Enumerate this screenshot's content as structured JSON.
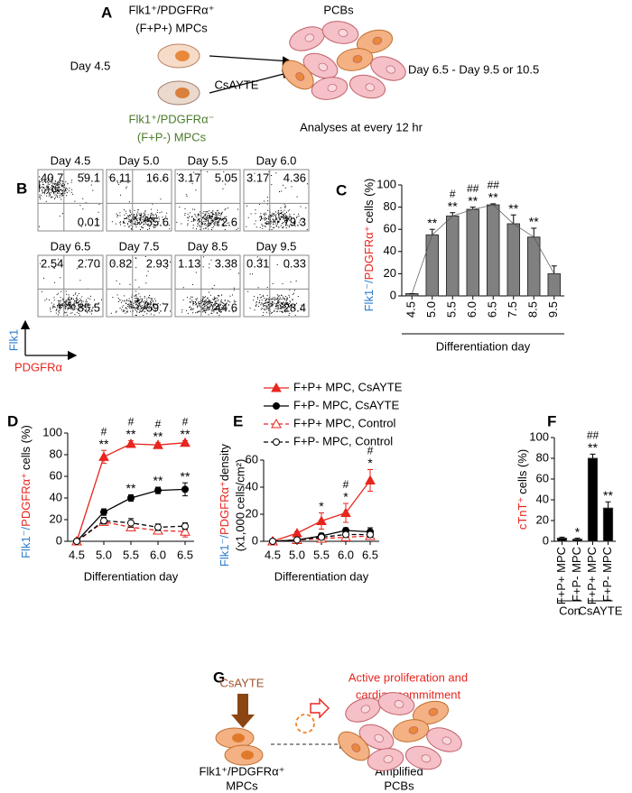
{
  "panels": {
    "a": {
      "label": "A",
      "mpc_pos": [
        "Flk1⁺/PDGFRα⁺",
        "(F+P+) MPCs"
      ],
      "day": "Day 4.5",
      "treatment": "CsAYTE",
      "mpc_neg": [
        "Flk1⁺/PDGFRα⁻",
        "(F+P-) MPCs"
      ],
      "product": "PCBs",
      "period": "Day 6.5 - Day 9.5 or 10.5",
      "analysis": "Analyses at every 12 hr"
    },
    "b": {
      "label": "B",
      "y_axis": "Flk1",
      "x_axis": "PDGFRα",
      "plots": [
        {
          "title": "Day 4.5",
          "upper_left": "40.7",
          "upper_right": "59.1",
          "lower_right": "0.01"
        },
        {
          "title": "Day 5.0",
          "upper_left": "6.11",
          "upper_right": "16.6",
          "lower_right": "55.6"
        },
        {
          "title": "Day 5.5",
          "upper_left": "3.17",
          "upper_right": "5.05",
          "lower_right": "72.6"
        },
        {
          "title": "Day 6.0",
          "upper_left": "3.17",
          "upper_right": "4.36",
          "lower_right": "79.3"
        },
        {
          "title": "Day 6.5",
          "upper_left": "2.54",
          "upper_right": "2.70",
          "lower_right": "85.5"
        },
        {
          "title": "Day 7.5",
          "upper_left": "0.82",
          "upper_right": "2.93",
          "lower_right": "59.7"
        },
        {
          "title": "Day 8.5",
          "upper_left": "1.13",
          "upper_right": "3.38",
          "lower_right": "44.6"
        },
        {
          "title": "Day 9.5",
          "upper_left": "0.31",
          "upper_right": "0.33",
          "lower_right": "28.4"
        }
      ]
    },
    "g": {
      "label": "G",
      "treatment": "CsAYTE",
      "effect": [
        "Active proliferation and",
        "cardiac commitment"
      ],
      "source": [
        "Flk1⁺/PDGFRα⁺",
        "MPCs"
      ],
      "product": [
        "Amplified",
        "PCBs"
      ]
    }
  },
  "chart_data": [
    {
      "type": "bar",
      "label": "C",
      "ylabel": [
        {
          "text": "Flk1⁻/",
          "color": "#2a7ccc"
        },
        {
          "text": "PDGFRα⁺",
          "color": "#e8251e"
        },
        {
          "text": "cells (%)",
          "color": "#000000"
        }
      ],
      "xlabel": "Differentiation day",
      "categories": [
        "4.5",
        "5.0",
        "5.5",
        "6.0",
        "6.5",
        "7.5",
        "8.5",
        "9.5"
      ],
      "values": [
        2,
        55,
        72,
        78,
        82,
        65,
        53,
        20
      ],
      "errors": [
        0,
        5,
        3,
        2,
        1,
        8,
        8,
        7
      ],
      "stars": [
        null,
        "**",
        "**",
        "**",
        "**",
        "**",
        "**",
        null
      ],
      "hashes": [
        null,
        null,
        "#",
        "##",
        "##",
        null,
        null,
        null
      ],
      "color": "#808080",
      "ylim": [
        0,
        100
      ],
      "yticks": [
        0,
        20,
        40,
        60,
        80,
        100
      ]
    },
    {
      "type": "line",
      "label": "D",
      "ylabel": [
        {
          "text": "Flk1⁻/",
          "color": "#2a7ccc"
        },
        {
          "text": "PDGFRα⁺",
          "color": "#e8251e"
        },
        {
          "text": "cells (%)",
          "color": "#000000"
        }
      ],
      "xlabel": "Differentiation day",
      "categories": [
        "4.5",
        "5.0",
        "5.5",
        "6.0",
        "6.5"
      ],
      "series": [
        {
          "name": "F+P+ MPC, CsAYTE",
          "color": "#e8251e",
          "dash": false,
          "marker": "triangle",
          "filled": true,
          "values": [
            0,
            78,
            90,
            89,
            91
          ],
          "errors": [
            0,
            6,
            3,
            2,
            2
          ],
          "stars": [
            null,
            "**",
            "**",
            "**",
            "**"
          ],
          "hashes": [
            null,
            "#",
            "#",
            "#",
            "#"
          ]
        },
        {
          "name": "F+P- MPC, CsAYTE",
          "color": "#000000",
          "dash": false,
          "marker": "circle",
          "filled": true,
          "values": [
            0,
            27,
            40,
            47,
            48
          ],
          "errors": [
            0,
            3,
            3,
            3,
            6
          ],
          "stars": [
            null,
            null,
            "**",
            "**",
            "**"
          ]
        },
        {
          "name": "F+P+ MPC, Control",
          "color": "#e8251e",
          "dash": true,
          "marker": "triangle",
          "filled": false,
          "values": [
            0,
            18,
            13,
            10,
            9
          ],
          "errors": [
            0,
            3,
            3,
            3,
            5
          ]
        },
        {
          "name": "F+P- MPC, Control",
          "color": "#000000",
          "dash": true,
          "marker": "circle",
          "filled": false,
          "values": [
            0,
            19,
            17,
            13,
            14
          ],
          "errors": [
            0,
            3,
            4,
            3,
            3
          ]
        }
      ],
      "ylim": [
        0,
        100
      ],
      "yticks": [
        0,
        20,
        40,
        60,
        80,
        100
      ]
    },
    {
      "type": "line",
      "label": "E",
      "ylabel": [
        {
          "text": "Flk1⁻/",
          "color": "#2a7ccc"
        },
        {
          "text": "PDGFRα⁺",
          "color": "#e8251e"
        },
        {
          "text": "density",
          "color": "#000000"
        }
      ],
      "ylabel2": "(x1,000 cells/cm²)",
      "xlabel": "Differentiation day",
      "categories": [
        "4.5",
        "5.0",
        "5.5",
        "6.0",
        "6.5"
      ],
      "series": [
        {
          "color": "#e8251e",
          "dash": false,
          "marker": "triangle",
          "filled": true,
          "values": [
            0,
            6,
            15,
            21,
            45
          ],
          "errors": [
            0,
            1,
            6,
            7,
            8
          ],
          "stars": [
            null,
            null,
            "*",
            "*",
            "*"
          ],
          "hashes": [
            null,
            null,
            null,
            "#",
            "#"
          ]
        },
        {
          "color": "#000000",
          "dash": false,
          "marker": "circle",
          "filled": true,
          "values": [
            0,
            1,
            4,
            8,
            7
          ],
          "errors": [
            0,
            1,
            2,
            2,
            3
          ]
        },
        {
          "color": "#e8251e",
          "dash": true,
          "marker": "triangle",
          "filled": false,
          "values": [
            0,
            1,
            2,
            3,
            4
          ],
          "errors": [
            0,
            1,
            1,
            1,
            2
          ]
        },
        {
          "color": "#000000",
          "dash": true,
          "marker": "circle",
          "filled": false,
          "values": [
            0,
            1,
            3,
            5,
            5
          ],
          "errors": [
            0,
            1,
            1,
            2,
            2
          ]
        }
      ],
      "ylim": [
        0,
        60
      ],
      "yticks": [
        0,
        20,
        40,
        60
      ]
    },
    {
      "type": "bar",
      "label": "F",
      "ylabel": [
        {
          "text": "cTnT⁺",
          "color": "#e8251e"
        },
        {
          "text": "cells (%)",
          "color": "#000000"
        }
      ],
      "categories": [
        "F+P+ MPC",
        "F+P- MPC",
        "F+P+ MPC",
        "F+P- MPC"
      ],
      "groups": [
        "Con",
        "CsAYTE"
      ],
      "values": [
        3,
        2,
        80,
        32
      ],
      "errors": [
        1,
        1,
        4,
        6
      ],
      "stars": [
        null,
        "*",
        "**",
        "**"
      ],
      "hashes": [
        null,
        null,
        "##",
        null
      ],
      "color": "#000000",
      "ylim": [
        0,
        100
      ],
      "yticks": [
        0,
        20,
        40,
        60,
        80,
        100
      ]
    }
  ]
}
